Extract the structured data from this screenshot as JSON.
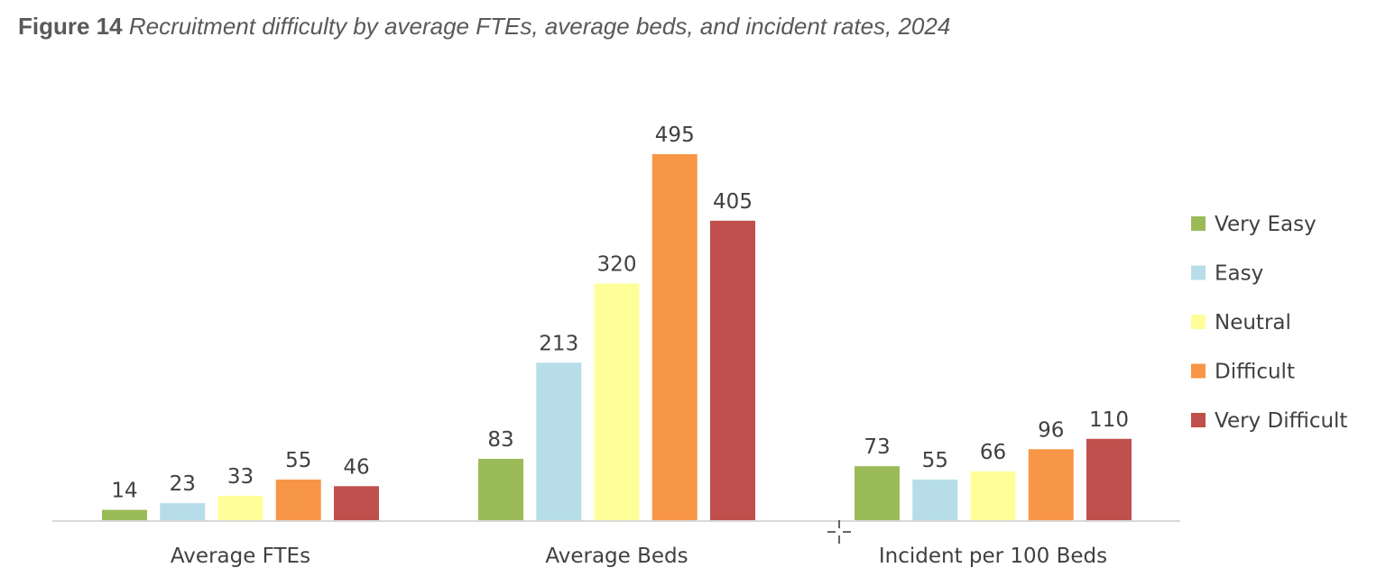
{
  "figure": {
    "label": "Figure 14",
    "caption": "Recruitment difficulty by average FTEs, average beds, and incident rates, 2024"
  },
  "chart_data": {
    "type": "bar",
    "categories": [
      "Average FTEs",
      "Average Beds",
      "Incident per 100 Beds"
    ],
    "series": [
      {
        "name": "Very Easy",
        "color": "#9BBB59",
        "values": [
          14,
          83,
          73
        ]
      },
      {
        "name": "Easy",
        "color": "#B7DDE8",
        "values": [
          23,
          213,
          55
        ]
      },
      {
        "name": "Neutral",
        "color": "#FFFF99",
        "values": [
          33,
          320,
          66
        ]
      },
      {
        "name": "Difficult",
        "color": "#F79646",
        "values": [
          55,
          495,
          96
        ]
      },
      {
        "name": "Very Difficult",
        "color": "#C0504D",
        "values": [
          46,
          405,
          110
        ]
      }
    ],
    "ylim": [
      0,
      495
    ],
    "grid": false,
    "data_labels": true,
    "legend": "right"
  }
}
